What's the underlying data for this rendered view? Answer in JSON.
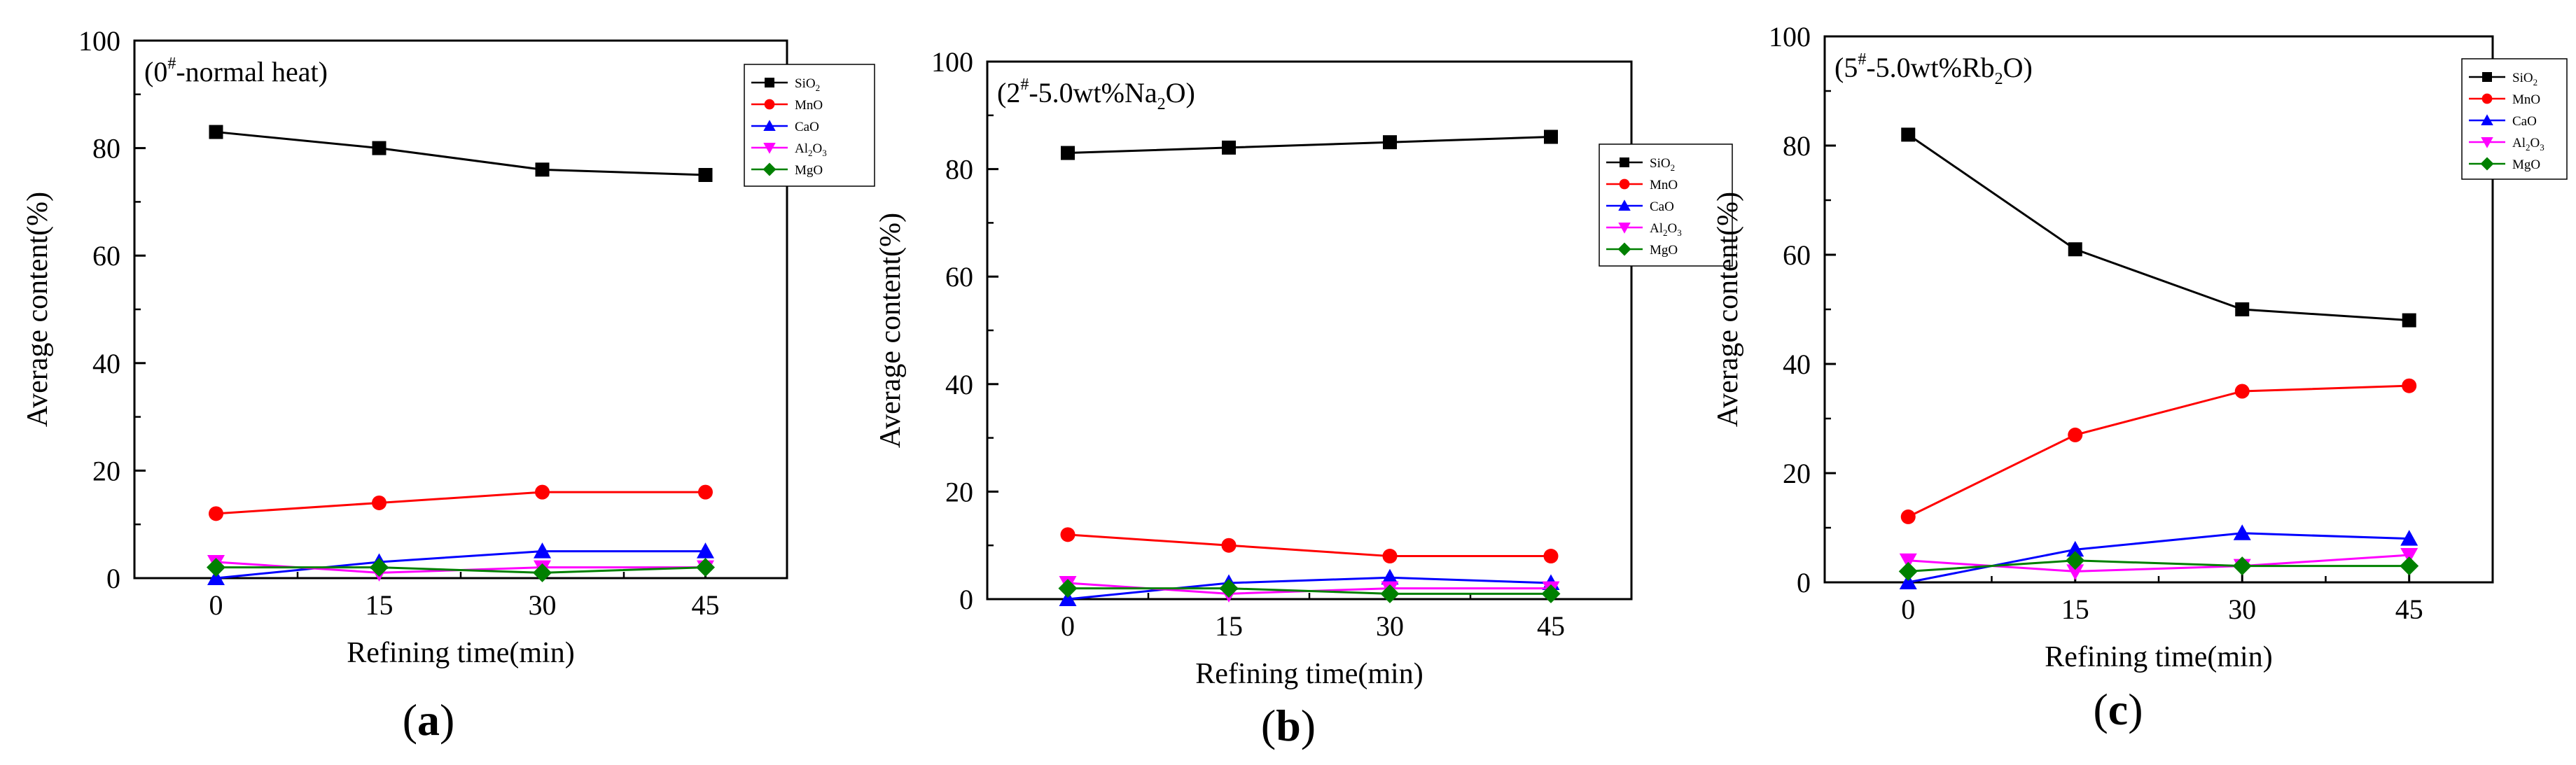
{
  "figure": {
    "ylabel": "Average content(%)",
    "xlabel": "Refining time(min)",
    "colors": {
      "SiO2": "#000000",
      "MnO": "#ff0000",
      "CaO": "#0000ff",
      "Al2O3": "#ff00ff",
      "MgO": "#008000"
    },
    "markers": {
      "SiO2": "square",
      "MnO": "circle",
      "CaO": "triangle-up",
      "Al2O3": "triangle-down",
      "MgO": "diamond"
    }
  },
  "chart_data": [
    {
      "type": "line",
      "letter": "a",
      "title": {
        "pre": "(0",
        "sup": "#",
        "post": "-normal heat)"
      },
      "xlabel": "Refining time(min)",
      "ylabel": "Average content(%)",
      "x": [
        0,
        15,
        30,
        45
      ],
      "xticks": [
        "0",
        "15",
        "30",
        "45"
      ],
      "yticks": [
        "0",
        "20",
        "40",
        "60",
        "80",
        "100"
      ],
      "xlim": [
        -7.5,
        52.5
      ],
      "ylim": [
        0,
        100
      ],
      "legend_position": "top-right",
      "series": [
        {
          "name": "SiO2",
          "label": "SiO",
          "sub": "2",
          "values": [
            83,
            80,
            76,
            75
          ]
        },
        {
          "name": "MnO",
          "label": "MnO",
          "sub": "",
          "values": [
            12,
            14,
            16,
            16
          ]
        },
        {
          "name": "CaO",
          "label": "CaO",
          "sub": "",
          "values": [
            0,
            3,
            5,
            5
          ]
        },
        {
          "name": "Al2O3",
          "label": "Al",
          "sub": "2",
          "label2": "O",
          "sub2": "3",
          "values": [
            3,
            1,
            2,
            2
          ]
        },
        {
          "name": "MgO",
          "label": "MgO",
          "sub": "",
          "values": [
            2,
            2,
            1,
            2
          ]
        }
      ]
    },
    {
      "type": "line",
      "letter": "b",
      "title": {
        "pre": "(2",
        "sup": "#",
        "post": "-5.0wt%Na",
        "sub": "2",
        "post2": "O)"
      },
      "xlabel": "Refining time(min)",
      "ylabel": "Average content(%)",
      "x": [
        0,
        15,
        30,
        45
      ],
      "xticks": [
        "0",
        "15",
        "30",
        "45"
      ],
      "yticks": [
        "0",
        "20",
        "40",
        "60",
        "80",
        "100"
      ],
      "xlim": [
        -7.5,
        52.5
      ],
      "ylim": [
        0,
        100
      ],
      "legend_position": "center-right",
      "series": [
        {
          "name": "SiO2",
          "label": "SiO",
          "sub": "2",
          "values": [
            83,
            84,
            85,
            86
          ]
        },
        {
          "name": "MnO",
          "label": "MnO",
          "sub": "",
          "values": [
            12,
            10,
            8,
            8
          ]
        },
        {
          "name": "CaO",
          "label": "CaO",
          "sub": "",
          "values": [
            0,
            3,
            4,
            3
          ]
        },
        {
          "name": "Al2O3",
          "label": "Al",
          "sub": "2",
          "label2": "O",
          "sub2": "3",
          "values": [
            3,
            1,
            2,
            2
          ]
        },
        {
          "name": "MgO",
          "label": "MgO",
          "sub": "",
          "values": [
            2,
            2,
            1,
            1
          ]
        }
      ]
    },
    {
      "type": "line",
      "letter": "c",
      "title": {
        "pre": "(5",
        "sup": "#",
        "post": "-5.0wt%Rb",
        "sub": "2",
        "post2": "O)"
      },
      "xlabel": "Refining time(min)",
      "ylabel": "Average content(%)",
      "x": [
        0,
        15,
        30,
        45
      ],
      "xticks": [
        "0",
        "15",
        "30",
        "45"
      ],
      "yticks": [
        "0",
        "20",
        "40",
        "60",
        "80",
        "100"
      ],
      "xlim": [
        -7.5,
        52.5
      ],
      "ylim": [
        0,
        100
      ],
      "legend_position": "top-right",
      "series": [
        {
          "name": "SiO2",
          "label": "SiO",
          "sub": "2",
          "values": [
            82,
            61,
            50,
            48
          ]
        },
        {
          "name": "MnO",
          "label": "MnO",
          "sub": "",
          "values": [
            12,
            27,
            35,
            36
          ]
        },
        {
          "name": "CaO",
          "label": "CaO",
          "sub": "",
          "values": [
            0,
            6,
            9,
            8
          ]
        },
        {
          "name": "Al2O3",
          "label": "Al",
          "sub": "2",
          "label2": "O",
          "sub2": "3",
          "values": [
            4,
            2,
            3,
            5
          ]
        },
        {
          "name": "MgO",
          "label": "MgO",
          "sub": "",
          "values": [
            2,
            4,
            3,
            3
          ]
        }
      ]
    }
  ]
}
